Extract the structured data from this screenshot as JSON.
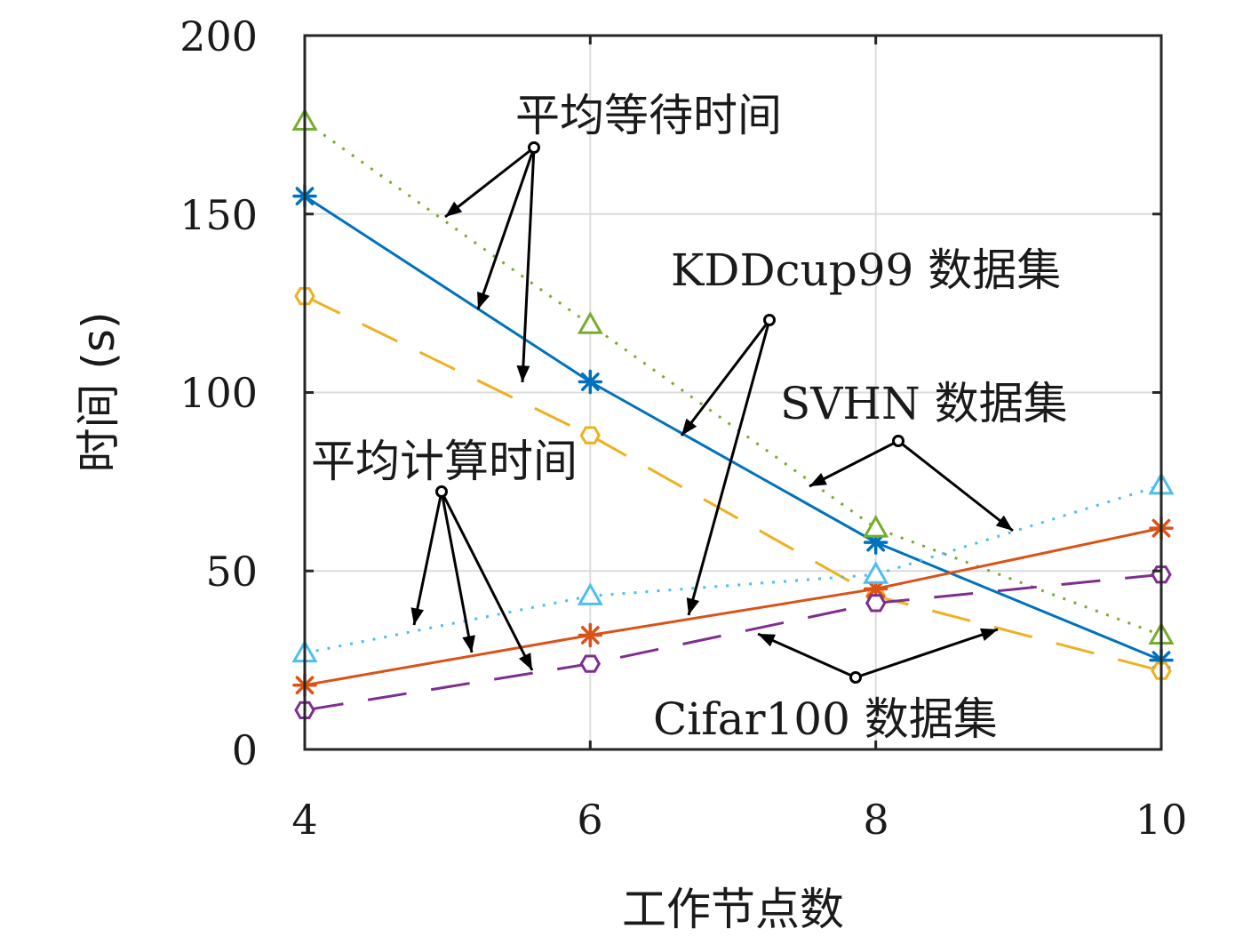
{
  "chart_data": {
    "type": "line",
    "xlabel": "工作节点数",
    "ylabel": "时间 (s)",
    "x": [
      4,
      6,
      8,
      10
    ],
    "xlim": [
      4,
      10
    ],
    "ylim": [
      0,
      200
    ],
    "xticks": [
      "4",
      "6",
      "8",
      "10"
    ],
    "yticks": [
      "0",
      "50",
      "100",
      "150",
      "200"
    ],
    "grid": true,
    "series": [
      {
        "values": [
          155,
          103,
          58,
          25
        ],
        "color": "#0072BD",
        "marker": "asterisk",
        "dash": "solid"
      },
      {
        "values": [
          176,
          119,
          62,
          32
        ],
        "color": "#77AC30",
        "marker": "triangle",
        "dash": "dotted"
      },
      {
        "values": [
          127,
          88,
          43,
          22
        ],
        "color": "#EDB120",
        "marker": "hexagon",
        "dash": "dashed"
      },
      {
        "values": [
          18,
          32,
          45,
          62
        ],
        "color": "#D95319",
        "marker": "asterisk",
        "dash": "solid"
      },
      {
        "values": [
          27,
          43,
          49,
          74
        ],
        "color": "#4DBEEE",
        "marker": "triangle",
        "dash": "dotted"
      },
      {
        "values": [
          11,
          24,
          41,
          49
        ],
        "color": "#7E2F8E",
        "marker": "hexagon",
        "dash": "dashed"
      }
    ],
    "annotations": [
      {
        "text": "平均等待时间"
      },
      {
        "text": "平均计算时间"
      },
      {
        "text": "KDDcup99 数据集"
      },
      {
        "text": "SVHN 数据集"
      },
      {
        "text": "Cifar100 数据集"
      }
    ]
  }
}
